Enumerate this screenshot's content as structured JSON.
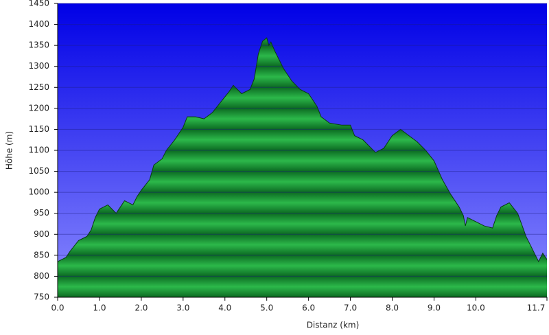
{
  "chart_data": {
    "type": "area",
    "x_label": "Distanz   (km)",
    "y_label": "Höhe (m)",
    "x": [
      0,
      0.2,
      0.3,
      0.5,
      0.7,
      0.8,
      0.9,
      1.0,
      1.2,
      1.3,
      1.4,
      1.5,
      1.6,
      1.7,
      1.8,
      1.9,
      2.0,
      2.2,
      2.3,
      2.5,
      2.6,
      2.8,
      3.0,
      3.1,
      3.3,
      3.5,
      3.7,
      3.9,
      4.1,
      4.2,
      4.3,
      4.4,
      4.6,
      4.7,
      4.8,
      4.9,
      5.0,
      5.05,
      5.1,
      5.2,
      5.4,
      5.6,
      5.8,
      6.0,
      6.1,
      6.2,
      6.3,
      6.5,
      6.8,
      7.0,
      7.1,
      7.3,
      7.5,
      7.6,
      7.8,
      8.0,
      8.2,
      8.4,
      8.6,
      8.8,
      9.0,
      9.2,
      9.4,
      9.6,
      9.7,
      9.75,
      9.8,
      10.0,
      10.2,
      10.4,
      10.5,
      10.6,
      10.8,
      11.0,
      11.2,
      11.4,
      11.5,
      11.6,
      11.7
    ],
    "values": [
      835,
      845,
      860,
      885,
      895,
      910,
      940,
      960,
      970,
      960,
      950,
      965,
      980,
      975,
      970,
      990,
      1005,
      1030,
      1065,
      1080,
      1100,
      1125,
      1155,
      1180,
      1180,
      1175,
      1190,
      1215,
      1240,
      1255,
      1245,
      1235,
      1245,
      1270,
      1330,
      1360,
      1368,
      1350,
      1358,
      1335,
      1295,
      1265,
      1245,
      1235,
      1220,
      1205,
      1180,
      1165,
      1160,
      1160,
      1135,
      1125,
      1105,
      1095,
      1105,
      1135,
      1150,
      1135,
      1120,
      1100,
      1075,
      1030,
      995,
      965,
      945,
      920,
      940,
      930,
      920,
      915,
      945,
      965,
      975,
      950,
      895,
      855,
      835,
      855,
      840
    ],
    "color": "#1a9a3a",
    "xlim": [
      0,
      11.7
    ],
    "xticks": [
      {
        "value": 0,
        "label": "0.0"
      },
      {
        "value": 1,
        "label": "1.0"
      },
      {
        "value": 2,
        "label": "2.0"
      },
      {
        "value": 3,
        "label": "3.0"
      },
      {
        "value": 4,
        "label": "4.0"
      },
      {
        "value": 5,
        "label": "5.0"
      },
      {
        "value": 6,
        "label": "6.0"
      },
      {
        "value": 7,
        "label": "7.0"
      },
      {
        "value": 8,
        "label": "8.0"
      },
      {
        "value": 9,
        "label": "9.0"
      },
      {
        "value": 10,
        "label": "10.0"
      },
      {
        "value": 11.7,
        "label": "11.7"
      }
    ],
    "ylim": [
      750,
      1450
    ],
    "yticks": [
      750,
      800,
      850,
      900,
      950,
      1000,
      1050,
      1100,
      1150,
      1200,
      1250,
      1300,
      1350,
      1400,
      1450
    ],
    "grid": true
  }
}
